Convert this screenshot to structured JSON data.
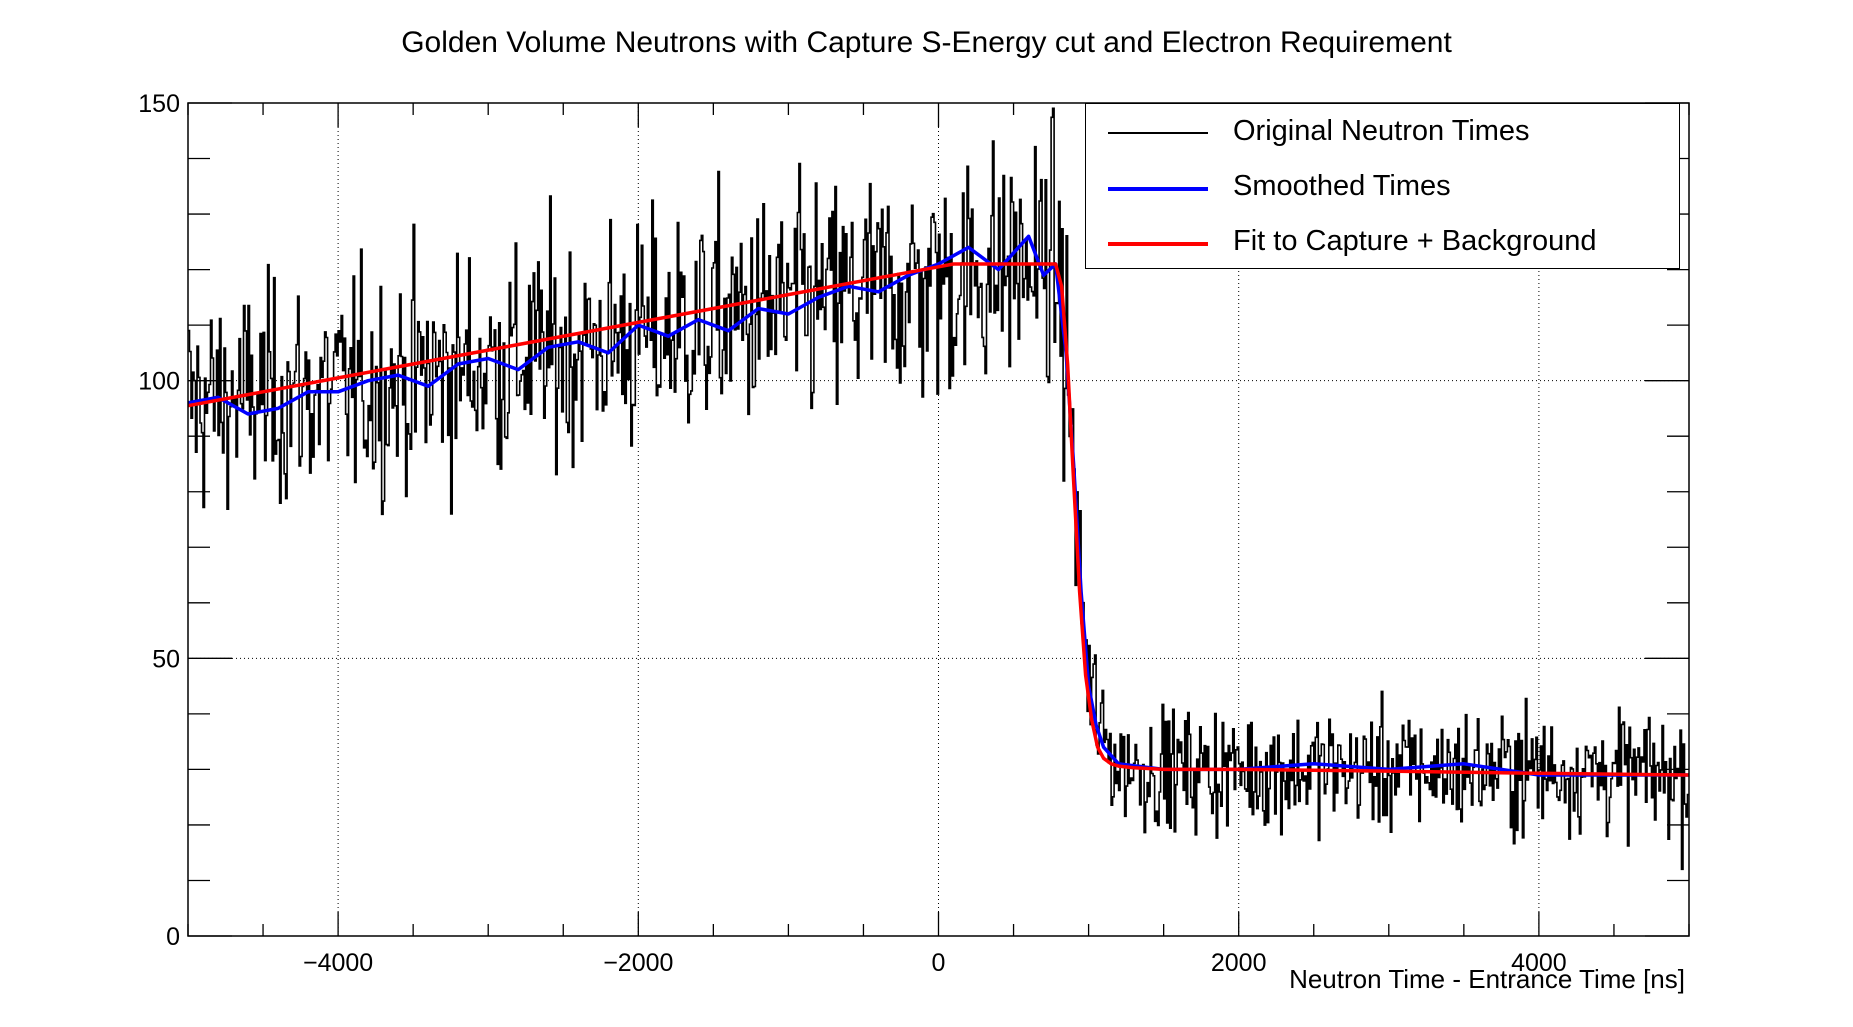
{
  "chart_data": {
    "type": "line",
    "title": "Golden Volume Neutrons with Capture S-Energy cut and Electron Requirement",
    "xlabel": "Neutron Time - Entrance Time [ns]",
    "ylabel": "",
    "xlim": [
      -5000,
      5000
    ],
    "ylim": [
      0,
      150
    ],
    "x_ticks": [
      -4000,
      -2000,
      0,
      2000,
      4000
    ],
    "x_tick_labels": [
      "−4000",
      "−2000",
      "0",
      "2000",
      "4000"
    ],
    "y_ticks": [
      0,
      50,
      100,
      150
    ],
    "y_tick_labels": [
      "0",
      "50",
      "100",
      "150"
    ],
    "grid": true,
    "legend_position": "top-right",
    "series": [
      {
        "name": "Original Neutron Times",
        "color": "#000000",
        "style": "histogram",
        "bin_width_ns": 10,
        "description_of_shape": "noisy histogram",
        "x": [
          -5000,
          -4000,
          -3000,
          -2000,
          -1000,
          0,
          500,
          780,
          850,
          900,
          950,
          1000,
          1100,
          1200,
          1500,
          2000,
          3000,
          4000,
          5000
        ],
        "y": [
          96,
          98,
          103,
          108,
          113,
          118,
          121,
          121,
          105,
          85,
          62,
          45,
          35,
          31,
          30,
          30,
          30,
          30,
          29
        ],
        "noise_sd": 10
      },
      {
        "name": "Smoothed Times",
        "color": "#0000ff",
        "x": [
          -5000,
          -4800,
          -4600,
          -4400,
          -4200,
          -4000,
          -3800,
          -3600,
          -3400,
          -3200,
          -3000,
          -2800,
          -2600,
          -2400,
          -2200,
          -2000,
          -1800,
          -1600,
          -1400,
          -1200,
          -1000,
          -800,
          -600,
          -400,
          -200,
          0,
          200,
          400,
          600,
          700,
          780,
          850,
          900,
          950,
          1000,
          1050,
          1100,
          1200,
          1500,
          2000,
          2500,
          3000,
          3500,
          4000,
          4500,
          5000
        ],
        "y": [
          96,
          97,
          94,
          95,
          98,
          98,
          100,
          101,
          99,
          103,
          104,
          102,
          106,
          107,
          105,
          110,
          108,
          111,
          109,
          113,
          112,
          115,
          117,
          116,
          119,
          121,
          124,
          120,
          126,
          119,
          121,
          105,
          85,
          62,
          45,
          38,
          34,
          31,
          30,
          30,
          31,
          30,
          31,
          29,
          29,
          29
        ]
      },
      {
        "name": "Fit to Capture + Background",
        "color": "#ff0000",
        "x": [
          -5000,
          -4000,
          -3000,
          -2000,
          -1000,
          0,
          100,
          780,
          820,
          860,
          900,
          940,
          980,
          1020,
          1060,
          1100,
          1150,
          1200,
          1300,
          1500,
          2000,
          3000,
          4000,
          5000
        ],
        "y": [
          95.5,
          100.5,
          105.5,
          110.5,
          115.5,
          120.5,
          121,
          121,
          117,
          103,
          82,
          62,
          47,
          39,
          34,
          32,
          31,
          30.6,
          30.3,
          30,
          30,
          29.7,
          29.3,
          29
        ]
      }
    ]
  }
}
